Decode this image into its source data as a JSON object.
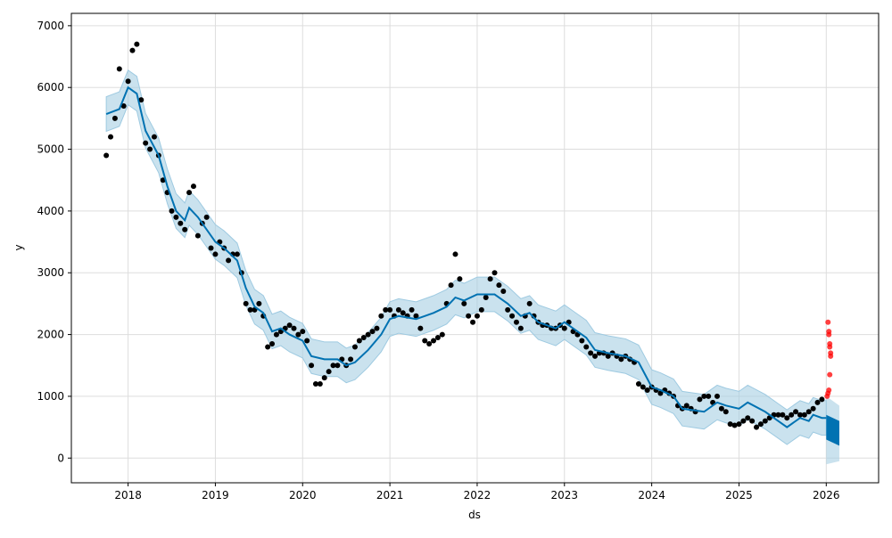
{
  "chart_data": {
    "type": "scatter",
    "title": "",
    "xlabel": "ds",
    "ylabel": "y",
    "xlim": [
      2017.35,
      2026.6
    ],
    "ylim": [
      -400,
      7200
    ],
    "grid": true,
    "x_ticks": [
      "2018",
      "2019",
      "2020",
      "2021",
      "2022",
      "2023",
      "2024",
      "2025",
      "2026"
    ],
    "x_tick_values": [
      2018,
      2019,
      2020,
      2021,
      2022,
      2023,
      2024,
      2025,
      2026
    ],
    "y_ticks": [
      "0",
      "1000",
      "2000",
      "3000",
      "4000",
      "5000",
      "6000",
      "7000"
    ],
    "y_tick_values": [
      0,
      1000,
      2000,
      3000,
      4000,
      5000,
      6000,
      7000
    ],
    "colors": {
      "actual": "#000000",
      "forecast": "#0072B2",
      "band": "#a6cee3",
      "test": "#ff0000"
    },
    "actuals": {
      "start": 2017.75,
      "step": 0.05,
      "values": [
        4900,
        5200,
        5500,
        6300,
        5700,
        6100,
        6600,
        6700,
        5800,
        5100,
        5000,
        5200,
        4900,
        4500,
        4300,
        4000,
        3900,
        3800,
        3700,
        4300,
        4400,
        3600,
        3800,
        3900,
        3400,
        3300,
        3500,
        3400,
        3200,
        3300,
        3300,
        3000,
        2500,
        2400,
        2400,
        2500,
        2300,
        1800,
        1850,
        2000,
        2050,
        2100,
        2150,
        2100,
        2000,
        2050,
        1900,
        1500,
        1200,
        1200,
        1300,
        1400,
        1500,
        1500,
        1600,
        1500,
        1600,
        1800,
        1900,
        1950,
        2000,
        2050,
        2100,
        2300,
        2400,
        2400,
        2300,
        2400,
        2350,
        2300,
        2400,
        2300,
        2100,
        1900,
        1850,
        1900,
        1950,
        2000,
        2500,
        2800,
        3300,
        2900,
        2500,
        2300,
        2200,
        2300,
        2400,
        2600,
        2900,
        3000,
        2800,
        2700,
        2400,
        2300,
        2200,
        2100,
        2300,
        2500,
        2300,
        2200,
        2150,
        2150,
        2100,
        2100,
        2150,
        2100,
        2200,
        2050,
        2000,
        1900,
        1800,
        1700,
        1650,
        1700,
        1700,
        1650,
        1700,
        1650,
        1600,
        1650,
        1600,
        1550,
        1200,
        1150,
        1100,
        1150,
        1100,
        1050,
        1100,
        1050,
        1000,
        850,
        800,
        850,
        800,
        750,
        950,
        1000,
        1000,
        900,
        1000,
        800,
        750,
        550,
        530,
        550,
        600,
        650,
        600,
        500,
        550,
        600,
        650,
        700,
        700,
        700,
        650,
        700,
        750,
        700,
        700,
        750,
        800,
        900,
        950
      ]
    },
    "test_points": {
      "x": [
        2026.02,
        2026.03,
        2026.03,
        2026.04,
        2026.04,
        2026.05,
        2026.05,
        2026.04,
        2026.03,
        2026.02,
        2026.01
      ],
      "y": [
        2200,
        2050,
        2000,
        1850,
        1800,
        1700,
        1650,
        1350,
        1100,
        1050,
        1000
      ]
    },
    "forecast": {
      "x": [
        2017.75,
        2017.9,
        2018.0,
        2018.1,
        2018.2,
        2018.35,
        2018.45,
        2018.55,
        2018.65,
        2018.7,
        2018.8,
        2018.9,
        2019.0,
        2019.1,
        2019.25,
        2019.35,
        2019.45,
        2019.55,
        2019.65,
        2019.75,
        2019.85,
        2020.0,
        2020.1,
        2020.25,
        2020.4,
        2020.5,
        2020.6,
        2020.75,
        2020.9,
        2021.0,
        2021.1,
        2021.3,
        2021.4,
        2021.5,
        2021.65,
        2021.75,
        2021.85,
        2022.0,
        2022.2,
        2022.35,
        2022.5,
        2022.6,
        2022.7,
        2022.9,
        2023.0,
        2023.1,
        2023.25,
        2023.35,
        2023.5,
        2023.7,
        2023.85,
        2024.0,
        2024.1,
        2024.25,
        2024.35,
        2024.6,
        2024.75,
        2024.85,
        2025.0,
        2025.1,
        2025.3,
        2025.45,
        2025.55,
        2025.7,
        2025.8,
        2025.85,
        2025.95,
        2026.0
      ],
      "yhat": [
        5570,
        5650,
        6000,
        5900,
        5300,
        4900,
        4400,
        4000,
        3850,
        4050,
        3900,
        3700,
        3500,
        3400,
        3200,
        2750,
        2450,
        2350,
        2050,
        2100,
        2000,
        1900,
        1650,
        1600,
        1600,
        1500,
        1550,
        1750,
        2000,
        2250,
        2300,
        2250,
        2300,
        2350,
        2450,
        2600,
        2550,
        2650,
        2650,
        2500,
        2300,
        2350,
        2200,
        2100,
        2200,
        2100,
        1950,
        1750,
        1700,
        1650,
        1550,
        1150,
        1100,
        1000,
        800,
        750,
        900,
        850,
        800,
        900,
        750,
        600,
        500,
        650,
        600,
        700,
        650,
        650
      ],
      "band_width": 280,
      "future": {
        "x": [
          2026.0,
          2026.15
        ],
        "yhat_low": [
          300,
          200
        ],
        "yhat_high": [
          700,
          600
        ],
        "lower": [
          -100,
          -50
        ],
        "upper": [
          1000,
          850
        ]
      }
    }
  }
}
